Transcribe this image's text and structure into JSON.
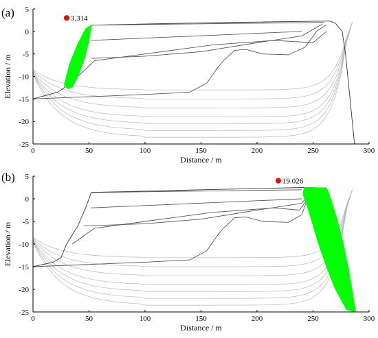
{
  "chart_data": [
    {
      "type": "line",
      "panel_label": "(a)",
      "xlabel": "Distance / m",
      "ylabel": "Elevation / m",
      "xlim": [
        0,
        300
      ],
      "ylim": [
        -25,
        5
      ],
      "xticks": [
        0,
        50,
        100,
        150,
        200,
        250,
        300
      ],
      "yticks": [
        5,
        0,
        -5,
        -10,
        -15,
        -20,
        -25
      ],
      "factor_of_safety": {
        "label": "3.314",
        "x": 30,
        "y": 3
      },
      "slip_mass_fill": "#00ff00",
      "slip_mass": [
        [
          29,
          -12.3
        ],
        [
          28,
          -11.8
        ],
        [
          33,
          -7
        ],
        [
          40,
          -2.8
        ],
        [
          47,
          0.6
        ],
        [
          52,
          1.4
        ],
        [
          50,
          -2
        ],
        [
          46,
          -6
        ],
        [
          40,
          -10
        ],
        [
          35,
          -12.4
        ],
        [
          31,
          -12.7
        ]
      ],
      "slope_lines": [
        [
          [
            0,
            -15
          ],
          [
            22,
            -13.5
          ],
          [
            28,
            -12.5
          ],
          [
            33,
            -9
          ],
          [
            38,
            -6
          ],
          [
            45,
            -2
          ],
          [
            52,
            1.4
          ]
        ],
        [
          [
            52,
            1.4
          ],
          [
            150,
            1.9
          ],
          [
            265,
            2.3
          ],
          [
            270,
            1.8
          ],
          [
            276,
            0
          ],
          [
            279,
            -5
          ],
          [
            283,
            -15
          ],
          [
            287,
            -25
          ]
        ],
        [
          [
            52,
            1.4
          ],
          [
            260,
            2
          ]
        ],
        [
          [
            0,
            -15
          ],
          [
            100,
            -14
          ],
          [
            140,
            -13.5
          ],
          [
            155,
            -11.5
          ],
          [
            165,
            -8
          ],
          [
            170,
            -6.5
          ],
          [
            180,
            -4.2
          ],
          [
            190,
            -4
          ],
          [
            205,
            -5
          ],
          [
            228,
            -5.2
          ],
          [
            243,
            -3.5
          ],
          [
            253,
            0
          ],
          [
            262,
            1.5
          ]
        ],
        [
          [
            52,
            -2
          ],
          [
            240,
            0
          ]
        ],
        [
          [
            52,
            -6
          ],
          [
            100,
            -5.5
          ],
          [
            150,
            -4.5
          ],
          [
            200,
            -2.5
          ],
          [
            240,
            -1
          ],
          [
            258,
            1.6
          ]
        ],
        [
          [
            40,
            -10
          ],
          [
            55,
            -6.5
          ],
          [
            100,
            -5
          ],
          [
            160,
            -3
          ],
          [
            215,
            -2
          ],
          [
            250,
            -2.5
          ],
          [
            262,
            0
          ]
        ]
      ],
      "contour_base_y": [
        -13,
        -15,
        -17,
        -19,
        -20.5,
        -22,
        -23.5
      ]
    },
    {
      "type": "line",
      "panel_label": "(b)",
      "xlabel": "Distance / m",
      "ylabel": "Elevation / m",
      "xlim": [
        0,
        300
      ],
      "ylim": [
        -25,
        5
      ],
      "xticks": [
        0,
        50,
        100,
        150,
        200,
        250,
        300
      ],
      "yticks": [
        5,
        0,
        -5,
        -10,
        -15,
        -20,
        -25
      ],
      "factor_of_safety": {
        "label": "19.026",
        "x": 219,
        "y": 4
      },
      "slip_mass_fill": "#00ff00",
      "slip_mass": [
        [
          242,
          2.5
        ],
        [
          260,
          2.4
        ],
        [
          263,
          2
        ],
        [
          267,
          -1
        ],
        [
          272,
          -5
        ],
        [
          277,
          -10
        ],
        [
          282,
          -16
        ],
        [
          286,
          -22
        ],
        [
          288,
          -25
        ],
        [
          280,
          -24.5
        ],
        [
          270,
          -20
        ],
        [
          262,
          -15
        ],
        [
          255,
          -10
        ],
        [
          249,
          -5
        ],
        [
          244,
          -1
        ],
        [
          241,
          1
        ]
      ],
      "slope_lines": [
        [
          [
            0,
            -15
          ],
          [
            18,
            -14
          ],
          [
            25,
            -13
          ],
          [
            30,
            -10
          ],
          [
            40,
            -6
          ],
          [
            47,
            -2
          ],
          [
            52,
            1.4
          ]
        ],
        [
          [
            52,
            1.4
          ],
          [
            150,
            2
          ],
          [
            242,
            2.5
          ],
          [
            262,
            2.4
          ]
        ],
        [
          [
            52,
            1.4
          ],
          [
            240,
            2
          ]
        ],
        [
          [
            0,
            -15
          ],
          [
            100,
            -14
          ],
          [
            140,
            -13.5
          ],
          [
            155,
            -11.5
          ],
          [
            165,
            -8
          ],
          [
            170,
            -6.5
          ],
          [
            180,
            -4.2
          ],
          [
            190,
            -4
          ],
          [
            205,
            -5
          ],
          [
            228,
            -5.2
          ],
          [
            240,
            -3.5
          ],
          [
            245,
            0
          ],
          [
            250,
            1.5
          ]
        ],
        [
          [
            52,
            -2
          ],
          [
            240,
            0
          ]
        ],
        [
          [
            45,
            -6
          ],
          [
            100,
            -5.5
          ],
          [
            150,
            -4.5
          ],
          [
            200,
            -2.5
          ],
          [
            240,
            -1
          ],
          [
            248,
            1.6
          ]
        ],
        [
          [
            35,
            -10
          ],
          [
            55,
            -6.5
          ],
          [
            100,
            -5
          ],
          [
            160,
            -3
          ],
          [
            215,
            -2
          ],
          [
            238,
            -2.5
          ],
          [
            245,
            0
          ]
        ]
      ],
      "contour_base_y": [
        -13,
        -15,
        -17,
        -19,
        -20.5,
        -22,
        -23.5
      ]
    }
  ]
}
